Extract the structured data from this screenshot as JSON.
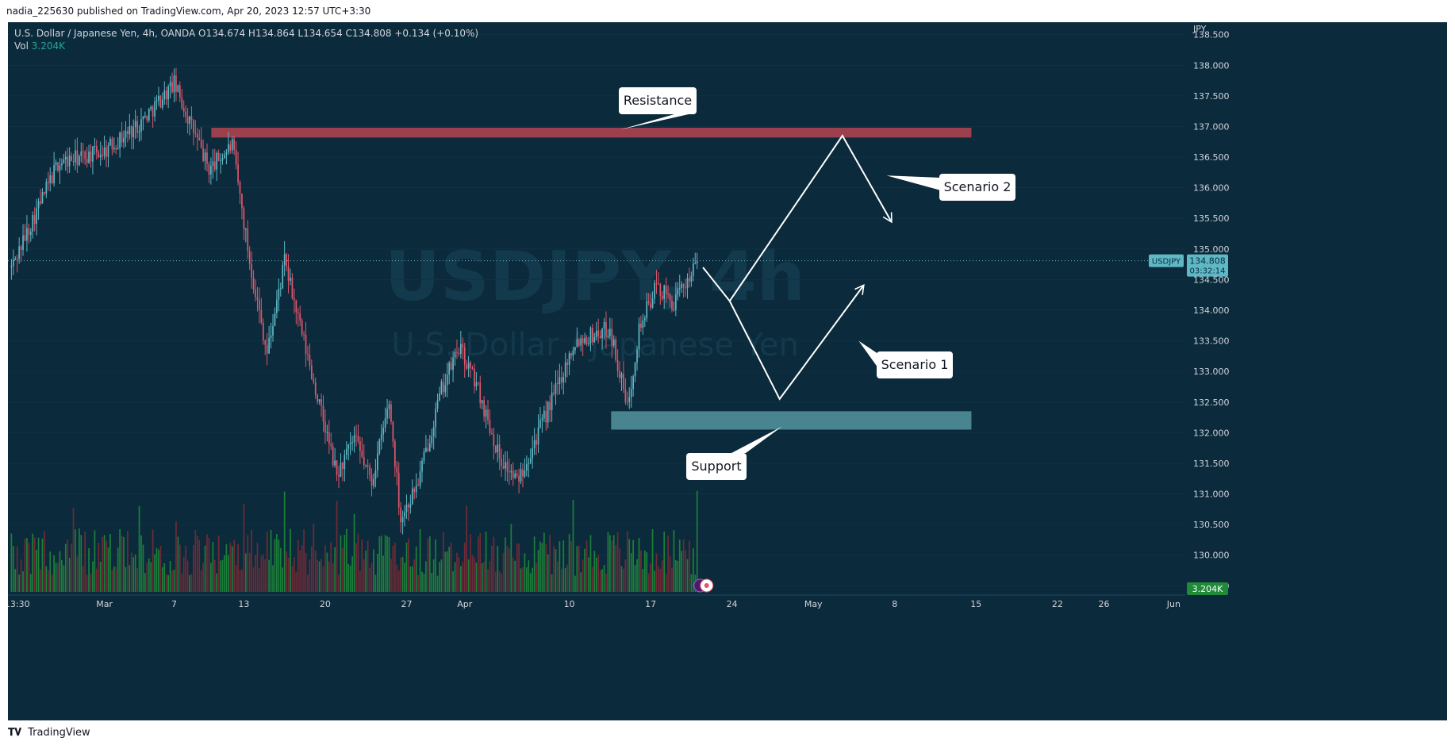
{
  "header": {
    "publish_line": "nadia_225630 published on TradingView.com, Apr 20, 2023 12:57 UTC+3:30"
  },
  "legend": {
    "symbol_line": "U.S. Dollar / Japanese Yen, 4h, OANDA  O134.674  H134.864  L134.654  C134.808  +0.134 (+0.10%)",
    "vol_label": "Vol",
    "vol_value": "3.204K"
  },
  "watermark": {
    "symbol": "USDJPY, 4h",
    "name": "U.S. Dollar / Japanese Yen"
  },
  "footer": {
    "brand": "TradingView"
  },
  "colors": {
    "background": "#0b2a3b",
    "up": "#5fb8c5",
    "down": "#e0566b",
    "vol_up": "#1f8a3a",
    "vol_down": "#7a2a36",
    "resistance_zone": "#a4414f",
    "support_zone": "#4d8a96",
    "annotation": "#ffffff"
  },
  "chart_data": {
    "type": "candlestick",
    "symbol": "USDJPY",
    "timeframe": "4h",
    "currency": "JPY",
    "y_ticks": [
      "138.500",
      "138.000",
      "137.500",
      "137.000",
      "136.500",
      "136.000",
      "135.500",
      "135.000",
      "134.500",
      "134.000",
      "133.500",
      "133.000",
      "132.500",
      "132.000",
      "131.500",
      "131.000",
      "130.500",
      "130.000",
      "129.500"
    ],
    "ylim": [
      129.4,
      138.6
    ],
    "x_ticks": [
      {
        "label": "13:30",
        "day": 0.5
      },
      {
        "label": "Mar",
        "day": 8
      },
      {
        "label": "7",
        "day": 14
      },
      {
        "label": "13",
        "day": 20
      },
      {
        "label": "20",
        "day": 27
      },
      {
        "label": "27",
        "day": 34
      },
      {
        "label": "Apr",
        "day": 39
      },
      {
        "label": "10",
        "day": 48
      },
      {
        "label": "17",
        "day": 55
      },
      {
        "label": "24",
        "day": 62
      },
      {
        "label": "May",
        "day": 69
      },
      {
        "label": "8",
        "day": 76
      },
      {
        "label": "15",
        "day": 83
      },
      {
        "label": "22",
        "day": 90
      },
      {
        "label": "26",
        "day": 94
      },
      {
        "label": "Jun",
        "day": 100
      }
    ],
    "xlim": [
      -0.3,
      101
    ],
    "candles_per_day": 6,
    "anchors": [
      [
        0,
        134.7
      ],
      [
        4,
        136.4
      ],
      [
        8,
        136.6
      ],
      [
        11,
        137.05
      ],
      [
        14,
        137.7
      ],
      [
        17,
        136.3
      ],
      [
        19,
        136.7
      ],
      [
        20.5,
        134.8
      ],
      [
        22,
        133.3
      ],
      [
        23.5,
        134.8
      ],
      [
        25,
        133.6
      ],
      [
        28,
        131.3
      ],
      [
        29.5,
        131.9
      ],
      [
        31,
        131.2
      ],
      [
        32.5,
        132.5
      ],
      [
        33.5,
        130.6
      ],
      [
        35,
        131.2
      ],
      [
        37,
        132.7
      ],
      [
        38.5,
        133.4
      ],
      [
        40,
        132.8
      ],
      [
        42,
        131.6
      ],
      [
        43.5,
        131.2
      ],
      [
        46,
        132.3
      ],
      [
        48.5,
        133.5
      ],
      [
        51.5,
        133.7
      ],
      [
        53,
        132.4
      ],
      [
        54,
        133.7
      ],
      [
        55.5,
        134.4
      ],
      [
        57,
        134.1
      ],
      [
        59,
        134.81
      ]
    ],
    "last_price": "134.808",
    "last_price_symbol": "USDJPY",
    "countdown": "03:32:14",
    "volume_last": "3.204K",
    "zones": [
      {
        "name": "Resistance",
        "low": 136.82,
        "high": 136.98,
        "x_from_day": 17.2,
        "x_to_day": 82.6
      },
      {
        "name": "Support",
        "low": 132.05,
        "high": 132.35,
        "x_from_day": 51.6,
        "x_to_day": 82.6
      }
    ],
    "scenarios": [
      {
        "name": "Scenario 1",
        "path": [
          [
            59.5,
            134.7
          ],
          [
            61.8,
            134.15
          ],
          [
            66.1,
            132.55
          ],
          [
            73.3,
            134.4
          ]
        ]
      },
      {
        "name": "Scenario 2",
        "path": [
          [
            61.8,
            134.15
          ],
          [
            71.5,
            136.85
          ],
          [
            75.7,
            135.45
          ]
        ]
      }
    ],
    "labels": [
      "Resistance",
      "Support",
      "Scenario 1",
      "Scenario 2"
    ]
  }
}
